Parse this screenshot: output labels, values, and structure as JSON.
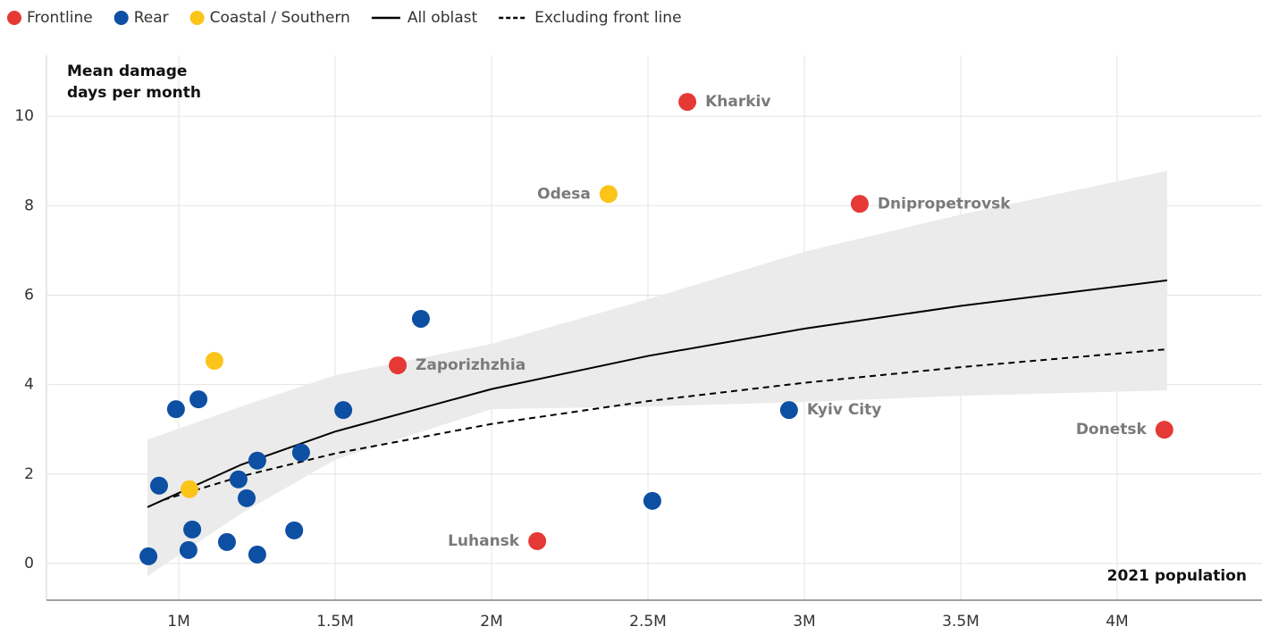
{
  "chart_data": {
    "type": "scatter",
    "ylabel": [
      "Mean damage",
      "days per month"
    ],
    "xlabel": "2021 population",
    "xlim": [
      577000,
      4463000
    ],
    "xticks": [
      {
        "value": 1000000,
        "label": "1M"
      },
      {
        "value": 1500000,
        "label": "1.5M"
      },
      {
        "value": 2000000,
        "label": "2M"
      },
      {
        "value": 2500000,
        "label": "2.5M"
      },
      {
        "value": 3000000,
        "label": "3M"
      },
      {
        "value": 3500000,
        "label": "3.5M"
      },
      {
        "value": 4000000,
        "label": "4M"
      }
    ],
    "ylim": [
      -0.82,
      11.36
    ],
    "yticks": [
      0,
      2,
      4,
      6,
      8,
      10
    ],
    "grid": true,
    "legend": "top-left",
    "series": [
      {
        "name": "Frontline",
        "type": "scatter",
        "color": "#e53935",
        "x": [
          2626000,
          3177000,
          1700000,
          2146000,
          4151000
        ],
        "values": [
          10.32,
          8.04,
          4.43,
          0.5,
          2.99
        ],
        "labels": [
          "Kharkiv",
          "Dnipropetrovsk",
          "Zaporizhzhia",
          "Luhansk",
          "Donetsk"
        ],
        "label_side": [
          "right",
          "right",
          "right",
          "left",
          "left"
        ]
      },
      {
        "name": "Rear",
        "type": "scatter",
        "color": "#0d4fa3",
        "x": [
          1774000,
          1526000,
          1063000,
          991000,
          937000,
          1391000,
          1251000,
          1191000,
          1217000,
          1043000,
          1154000,
          1369000,
          1031000,
          1251000,
          903000,
          2951000,
          2514000
        ],
        "values": [
          5.47,
          3.43,
          3.67,
          3.45,
          1.74,
          2.48,
          2.3,
          1.88,
          1.46,
          0.76,
          0.48,
          0.74,
          0.3,
          0.2,
          0.16,
          3.43,
          1.4
        ],
        "labels": [
          null,
          null,
          null,
          null,
          null,
          null,
          null,
          null,
          null,
          null,
          null,
          null,
          null,
          null,
          null,
          "Kyiv City",
          null
        ],
        "label_side": [
          null,
          null,
          null,
          null,
          null,
          null,
          null,
          null,
          null,
          null,
          null,
          null,
          null,
          null,
          null,
          "right",
          null
        ]
      },
      {
        "name": "Coastal / Southern",
        "type": "scatter",
        "color": "#fcc419",
        "x": [
          2374000,
          1114000,
          1034000
        ],
        "values": [
          8.26,
          4.53,
          1.66
        ],
        "labels": [
          "Odesa",
          null,
          null
        ],
        "label_side": [
          "left",
          null,
          null
        ]
      },
      {
        "name": "All oblast",
        "type": "line",
        "color": "#000000",
        "dash": false,
        "x": [
          900000,
          1200000,
          1500000,
          2000000,
          2500000,
          3000000,
          3500000,
          4160000
        ],
        "values": [
          1.26,
          2.21,
          2.95,
          3.9,
          4.64,
          5.25,
          5.76,
          6.33
        ]
      },
      {
        "name": "Excluding front line",
        "type": "line",
        "color": "#000000",
        "dash": true,
        "x": [
          950000,
          1200000,
          1500000,
          2000000,
          2500000,
          3000000,
          3500000,
          4160000
        ],
        "values": [
          1.42,
          1.95,
          2.46,
          3.12,
          3.63,
          4.04,
          4.39,
          4.79
        ]
      }
    ],
    "band": {
      "color": "#ebebeb",
      "x": [
        900000,
        1200000,
        1500000,
        2000000,
        2500000,
        3000000,
        3500000,
        4160000
      ],
      "upper": [
        2.77,
        3.51,
        4.21,
        4.91,
        5.91,
        6.97,
        7.8,
        8.78
      ],
      "lower": [
        -0.28,
        1.12,
        2.32,
        3.45,
        3.51,
        3.61,
        3.75,
        3.87
      ]
    }
  }
}
